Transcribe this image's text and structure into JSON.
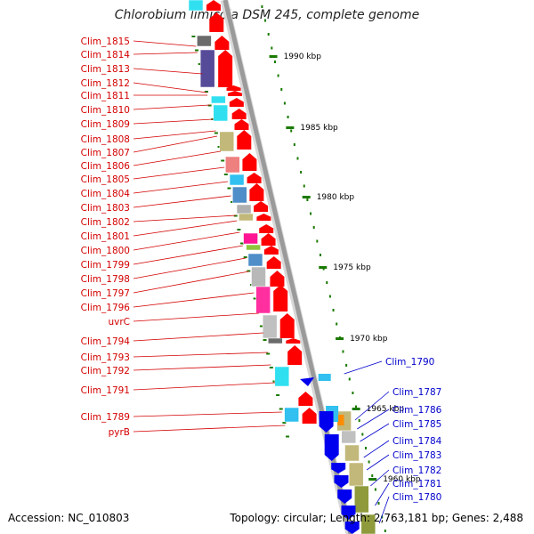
{
  "title": "Chlorobium limicola DSM 245, complete genome",
  "accession": "Accession: NC_010803",
  "topology": "Topology: circular; Length: 2,763,181 bp; Genes: 2,488",
  "colors": {
    "forward_label": "#d40000",
    "reverse_label": "#0000cc",
    "forward_gene": "#ff0000",
    "reverse_gene": "#0000ee",
    "backbone": "#9a9a9a",
    "tick": "#1a7a00"
  },
  "scale_labels": [
    "1990 kbp",
    "1985 kbp",
    "1980 kbp",
    "1975 kbp",
    "1970 kbp",
    "1965 kbp",
    "1960 kbp"
  ],
  "forward_genes": [
    "Clim_1815",
    "Clim_1814",
    "Clim_1813",
    "Clim_1812",
    "Clim_1811",
    "Clim_1810",
    "Clim_1809",
    "Clim_1808",
    "Clim_1807",
    "Clim_1806",
    "Clim_1805",
    "Clim_1804",
    "Clim_1803",
    "Clim_1802",
    "Clim_1801",
    "Clim_1800",
    "Clim_1799",
    "Clim_1798",
    "Clim_1797",
    "Clim_1796",
    "uvrC",
    "Clim_1794",
    "Clim_1793",
    "Clim_1792",
    "Clim_1791",
    "Clim_1789",
    "pyrB"
  ],
  "reverse_genes": [
    "Clim_1790",
    "Clim_1787",
    "Clim_1786",
    "Clim_1785",
    "Clim_1784",
    "Clim_1783",
    "Clim_1782",
    "Clim_1781",
    "Clim_1780"
  ]
}
